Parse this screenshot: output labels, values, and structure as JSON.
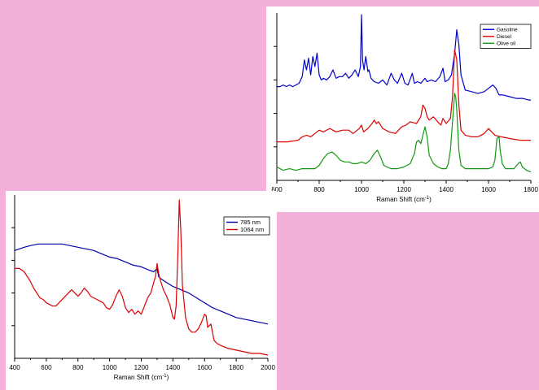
{
  "chart_data": [
    {
      "type": "line",
      "xlabel": "Raman Shift (cm",
      "xlabel_sup": "-1",
      "xlabel_tail": ")",
      "xlim": [
        600,
        1800
      ],
      "ylim": [
        0,
        1
      ],
      "xticks": [
        600,
        800,
        1000,
        1200,
        1400,
        1600,
        1800
      ],
      "grid": false,
      "legend_position": "top-right",
      "series": [
        {
          "name": "Gasoline",
          "color": "#0000cc",
          "x": [
            600,
            615,
            630,
            645,
            660,
            675,
            690,
            705,
            720,
            730,
            740,
            750,
            760,
            770,
            780,
            790,
            800,
            810,
            820,
            835,
            850,
            865,
            880,
            895,
            910,
            925,
            940,
            955,
            970,
            985,
            995,
            1000,
            1005,
            1012,
            1020,
            1025,
            1030,
            1035,
            1045,
            1060,
            1080,
            1100,
            1120,
            1140,
            1155,
            1170,
            1190,
            1205,
            1220,
            1240,
            1250,
            1265,
            1280,
            1300,
            1310,
            1330,
            1350,
            1370,
            1385,
            1395,
            1410,
            1425,
            1440,
            1450,
            1460,
            1470,
            1490,
            1520,
            1550,
            1580,
            1600,
            1620,
            1635,
            1650,
            1670,
            1700,
            1730,
            1760,
            1790,
            1800
          ],
          "y": [
            0.56,
            0.56,
            0.57,
            0.56,
            0.57,
            0.56,
            0.57,
            0.58,
            0.62,
            0.72,
            0.66,
            0.73,
            0.63,
            0.74,
            0.68,
            0.76,
            0.63,
            0.6,
            0.61,
            0.6,
            0.62,
            0.66,
            0.61,
            0.62,
            0.62,
            0.64,
            0.61,
            0.63,
            0.66,
            0.62,
            0.68,
            0.99,
            0.72,
            0.66,
            0.74,
            0.7,
            0.65,
            0.66,
            0.61,
            0.59,
            0.58,
            0.6,
            0.57,
            0.64,
            0.6,
            0.58,
            0.64,
            0.58,
            0.57,
            0.64,
            0.58,
            0.59,
            0.58,
            0.61,
            0.59,
            0.6,
            0.59,
            0.62,
            0.67,
            0.59,
            0.6,
            0.63,
            0.76,
            0.9,
            0.81,
            0.63,
            0.54,
            0.53,
            0.52,
            0.53,
            0.55,
            0.57,
            0.55,
            0.51,
            0.51,
            0.5,
            0.49,
            0.49,
            0.48,
            0.48
          ]
        },
        {
          "name": "Diesel",
          "color": "#dd0000",
          "x": [
            600,
            650,
            700,
            720,
            740,
            760,
            780,
            800,
            820,
            850,
            880,
            910,
            940,
            960,
            980,
            990,
            1000,
            1010,
            1030,
            1050,
            1060,
            1070,
            1080,
            1100,
            1130,
            1160,
            1175,
            1190,
            1210,
            1230,
            1260,
            1280,
            1290,
            1300,
            1310,
            1320,
            1340,
            1360,
            1375,
            1385,
            1400,
            1420,
            1430,
            1440,
            1450,
            1460,
            1470,
            1490,
            1520,
            1550,
            1580,
            1600,
            1615,
            1630,
            1660,
            1700,
            1750,
            1800
          ],
          "y": [
            0.23,
            0.23,
            0.24,
            0.26,
            0.27,
            0.26,
            0.28,
            0.3,
            0.29,
            0.31,
            0.29,
            0.3,
            0.3,
            0.28,
            0.3,
            0.31,
            0.33,
            0.29,
            0.31,
            0.34,
            0.36,
            0.34,
            0.35,
            0.31,
            0.29,
            0.28,
            0.3,
            0.32,
            0.33,
            0.35,
            0.34,
            0.38,
            0.45,
            0.43,
            0.38,
            0.36,
            0.38,
            0.35,
            0.33,
            0.37,
            0.34,
            0.37,
            0.5,
            0.78,
            0.72,
            0.45,
            0.3,
            0.27,
            0.26,
            0.26,
            0.28,
            0.31,
            0.29,
            0.27,
            0.26,
            0.25,
            0.24,
            0.24
          ]
        },
        {
          "name": "Olive oil",
          "color": "#119911",
          "x": [
            600,
            630,
            660,
            690,
            720,
            750,
            780,
            800,
            820,
            840,
            860,
            880,
            900,
            920,
            940,
            960,
            980,
            1000,
            1020,
            1040,
            1060,
            1075,
            1090,
            1105,
            1120,
            1140,
            1170,
            1200,
            1230,
            1250,
            1260,
            1270,
            1280,
            1290,
            1300,
            1310,
            1320,
            1340,
            1360,
            1380,
            1400,
            1410,
            1420,
            1430,
            1440,
            1445,
            1450,
            1460,
            1470,
            1490,
            1520,
            1560,
            1600,
            1620,
            1630,
            1640,
            1650,
            1655,
            1665,
            1680,
            1700,
            1720,
            1740,
            1750,
            1760,
            1780,
            1800
          ],
          "y": [
            0.08,
            0.06,
            0.07,
            0.06,
            0.07,
            0.07,
            0.07,
            0.09,
            0.13,
            0.16,
            0.17,
            0.15,
            0.12,
            0.11,
            0.11,
            0.1,
            0.1,
            0.11,
            0.1,
            0.12,
            0.16,
            0.18,
            0.14,
            0.09,
            0.08,
            0.07,
            0.07,
            0.08,
            0.1,
            0.16,
            0.23,
            0.24,
            0.22,
            0.27,
            0.32,
            0.26,
            0.15,
            0.1,
            0.08,
            0.07,
            0.07,
            0.1,
            0.18,
            0.35,
            0.52,
            0.5,
            0.42,
            0.18,
            0.09,
            0.07,
            0.07,
            0.07,
            0.07,
            0.08,
            0.12,
            0.25,
            0.26,
            0.18,
            0.1,
            0.07,
            0.07,
            0.07,
            0.1,
            0.11,
            0.08,
            0.06,
            0.05
          ]
        }
      ]
    },
    {
      "type": "line",
      "xlabel": "Raman Shift (cm",
      "xlabel_sup": "-1",
      "xlabel_tail": ")",
      "xlim": [
        400,
        2000
      ],
      "ylim": [
        0,
        1
      ],
      "xticks": [
        400,
        600,
        800,
        1000,
        1200,
        1400,
        1600,
        1800,
        2000
      ],
      "grid": false,
      "legend_position": "top-right",
      "series": [
        {
          "name": "785 nm",
          "color": "#0000aa",
          "x": [
            400,
            430,
            460,
            500,
            550,
            600,
            650,
            700,
            750,
            800,
            850,
            900,
            950,
            1000,
            1050,
            1100,
            1150,
            1200,
            1250,
            1280,
            1300,
            1310,
            1320,
            1350,
            1400,
            1450,
            1500,
            1550,
            1600,
            1650,
            1700,
            1750,
            1800,
            1850,
            1900,
            1950,
            2000
          ],
          "y": [
            0.66,
            0.67,
            0.68,
            0.69,
            0.7,
            0.7,
            0.7,
            0.7,
            0.69,
            0.68,
            0.67,
            0.66,
            0.64,
            0.62,
            0.61,
            0.59,
            0.57,
            0.56,
            0.54,
            0.53,
            0.55,
            0.5,
            0.49,
            0.47,
            0.44,
            0.42,
            0.4,
            0.37,
            0.34,
            0.31,
            0.29,
            0.27,
            0.25,
            0.24,
            0.23,
            0.22,
            0.21
          ]
        },
        {
          "name": "1064 nm",
          "color": "#dd0000",
          "x": [
            400,
            430,
            460,
            480,
            500,
            520,
            540,
            560,
            580,
            600,
            620,
            640,
            660,
            680,
            700,
            720,
            740,
            760,
            780,
            800,
            820,
            840,
            860,
            880,
            900,
            920,
            940,
            960,
            980,
            1000,
            1020,
            1040,
            1060,
            1080,
            1100,
            1120,
            1140,
            1160,
            1180,
            1200,
            1220,
            1240,
            1260,
            1280,
            1290,
            1300,
            1310,
            1320,
            1340,
            1360,
            1380,
            1400,
            1410,
            1420,
            1430,
            1440,
            1450,
            1460,
            1480,
            1500,
            1520,
            1540,
            1560,
            1580,
            1600,
            1610,
            1620,
            1640,
            1650,
            1660,
            1680,
            1700,
            1750,
            1800,
            1850,
            1900,
            1950,
            2000
          ],
          "y": [
            0.55,
            0.55,
            0.53,
            0.5,
            0.47,
            0.43,
            0.4,
            0.37,
            0.36,
            0.34,
            0.33,
            0.32,
            0.32,
            0.34,
            0.36,
            0.38,
            0.4,
            0.42,
            0.4,
            0.38,
            0.4,
            0.43,
            0.41,
            0.38,
            0.37,
            0.36,
            0.35,
            0.34,
            0.31,
            0.3,
            0.33,
            0.38,
            0.42,
            0.38,
            0.31,
            0.28,
            0.3,
            0.27,
            0.29,
            0.27,
            0.32,
            0.37,
            0.4,
            0.47,
            0.5,
            0.58,
            0.52,
            0.48,
            0.42,
            0.38,
            0.33,
            0.25,
            0.24,
            0.32,
            0.6,
            0.97,
            0.78,
            0.45,
            0.25,
            0.18,
            0.16,
            0.16,
            0.18,
            0.22,
            0.27,
            0.26,
            0.19,
            0.21,
            0.16,
            0.11,
            0.09,
            0.08,
            0.06,
            0.05,
            0.04,
            0.03,
            0.03,
            0.02
          ]
        }
      ]
    }
  ]
}
